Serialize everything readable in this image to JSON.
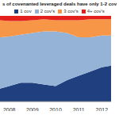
{
  "chart_data": {
    "type": "area",
    "title": "s of covenanted leveraged deals have only 1-2 cov",
    "stacked": true,
    "legend": "top",
    "tick_labels": "x",
    "x": [
      2007.6,
      2008,
      2008.5,
      2009,
      2009.5,
      2010,
      2010.5,
      2011,
      2011.5,
      2012,
      2012.4
    ],
    "xlim": [
      2007.6,
      2012.4
    ],
    "xticks": [
      2008,
      2009,
      2010,
      2011,
      2012
    ],
    "ylim": [
      0,
      100
    ],
    "series": [
      {
        "name": "1 cov",
        "color": "#1f3f7f",
        "values": [
          15,
          18,
          22,
          22,
          20,
          18,
          25,
          30,
          35,
          40,
          42
        ]
      },
      {
        "name": "2 cov's",
        "color": "#95b3d7",
        "values": [
          60,
          58,
          56,
          58,
          62,
          64,
          55,
          45,
          40,
          37,
          35
        ]
      },
      {
        "name": "3 cov's",
        "color": "#f79646",
        "values": [
          20,
          18,
          16,
          15,
          14,
          13,
          15,
          20,
          21,
          19,
          19
        ]
      },
      {
        "name": "4+ cov's",
        "color": "#e3201b",
        "values": [
          5,
          6,
          6,
          5,
          4,
          5,
          5,
          5,
          4,
          4,
          4
        ]
      }
    ]
  }
}
